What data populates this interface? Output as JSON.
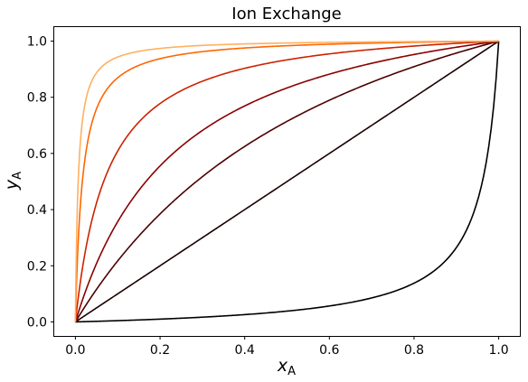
{
  "chart_data": {
    "type": "line",
    "title": "Ion Exchange",
    "xlabel": {
      "main": "x",
      "sub": "A"
    },
    "ylabel": {
      "main": "y",
      "sub": "A"
    },
    "xlim": [
      -0.05,
      1.05
    ],
    "ylim": [
      -0.05,
      1.05
    ],
    "grid": false,
    "legend": "none",
    "x_ticks": [
      0.0,
      0.2,
      0.4,
      0.6,
      0.8,
      1.0
    ],
    "x_tick_labels": [
      "0.0",
      "0.2",
      "0.4",
      "0.6",
      "0.8",
      "1.0"
    ],
    "y_ticks": [
      0.0,
      0.2,
      0.4,
      0.6,
      0.8,
      1.0
    ],
    "y_tick_labels": [
      "0.0",
      "0.2",
      "0.4",
      "0.6",
      "0.8",
      "1.0"
    ],
    "series": [
      {
        "separation_factor": 0.04,
        "color": "#000000"
      },
      {
        "separation_factor": 1,
        "color": "#1a0000"
      },
      {
        "separation_factor": 2.5,
        "color": "#4d0000"
      },
      {
        "separation_factor": 5,
        "color": "#8b0000"
      },
      {
        "separation_factor": 14,
        "color": "#cc2200"
      },
      {
        "separation_factor": 60,
        "color": "#ff6600"
      },
      {
        "separation_factor": 150,
        "color": "#ffb060"
      }
    ]
  }
}
